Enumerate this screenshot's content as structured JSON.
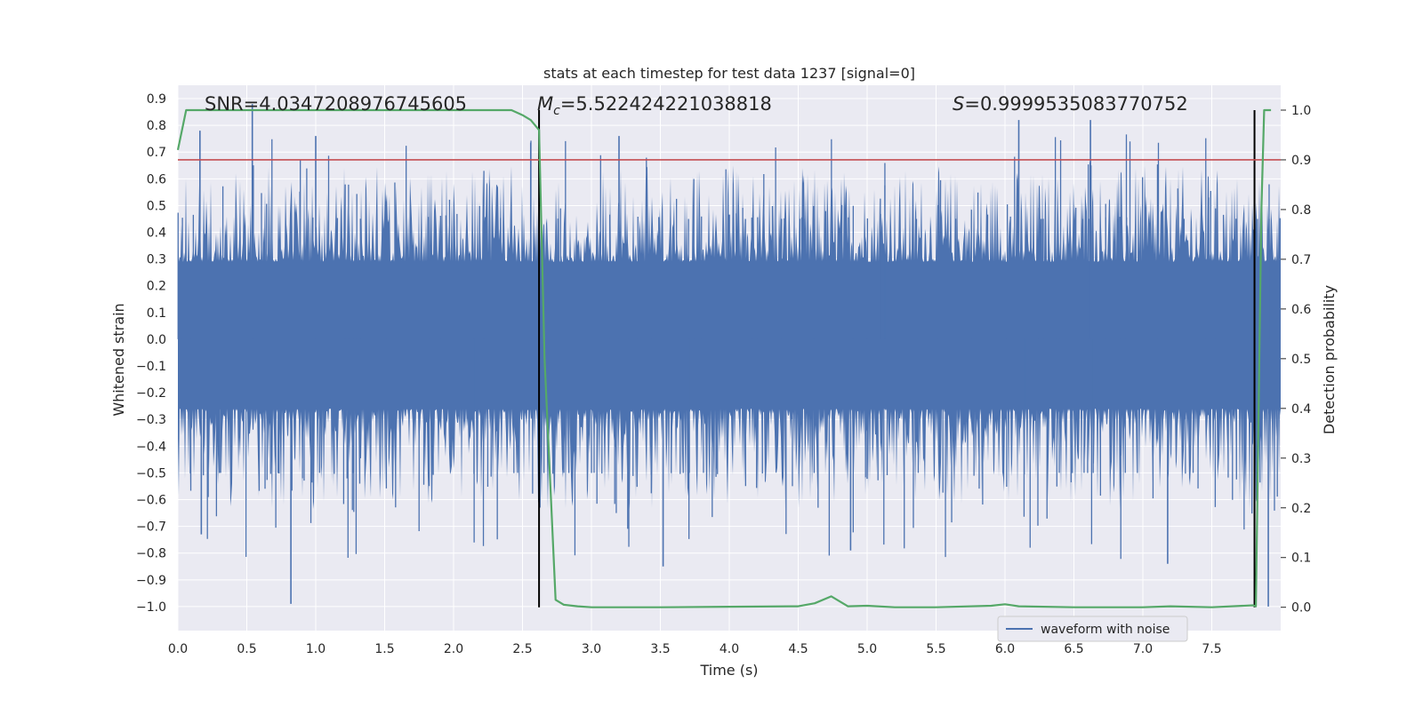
{
  "chart_data": {
    "type": "line",
    "title": "stats at each timestep for test data 1237 [signal=0]",
    "xlabel": "Time (s)",
    "ylabel_left": "Whitened strain",
    "ylabel_right": "Detection probability",
    "xlim": [
      0.0,
      8.0
    ],
    "ylim_left": [
      -1.09,
      0.95
    ],
    "ylim_right": [
      -0.047,
      1.05
    ],
    "x_ticks": [
      "0.0",
      "0.5",
      "1.0",
      "1.5",
      "2.0",
      "2.5",
      "3.0",
      "3.5",
      "4.0",
      "4.5",
      "5.0",
      "5.5",
      "6.0",
      "6.5",
      "7.0",
      "7.5"
    ],
    "y_ticks_left": [
      "0.9",
      "0.8",
      "0.7",
      "0.6",
      "0.5",
      "0.4",
      "0.3",
      "0.2",
      "0.1",
      "0.0",
      "-0.1",
      "-0.2",
      "-0.3",
      "-0.4",
      "-0.5",
      "-0.6",
      "-0.7",
      "-0.8",
      "-0.9",
      "-1.0"
    ],
    "y_ticks_right": [
      "1.0",
      "0.9",
      "0.8",
      "0.7",
      "0.6",
      "0.5",
      "0.4",
      "0.3",
      "0.2",
      "0.1",
      "0.0"
    ],
    "grid": true,
    "legend_placement": "lower-right",
    "legend": [
      "waveform with noise"
    ],
    "annotations": {
      "snr": "SNR=4.0347208976745605",
      "mc_symbol": "M",
      "mc_sub": "c",
      "mc_value": "=5.522424221038818",
      "s_symbol": "S",
      "s_value": "=0.9999535083770752"
    },
    "threshold": {
      "axis": "right",
      "value": 0.9,
      "color": "#c44e52"
    },
    "event_markers_x": [
      2.62,
      7.81
    ],
    "series": [
      {
        "name": "waveform with noise",
        "axis": "left",
        "color": "#4c72b0",
        "kind": "dense noise",
        "x_range": [
          0.0,
          8.0
        ],
        "core_amplitude": [
          -0.4,
          0.38
        ],
        "peaks": [
          {
            "x": 0.16,
            "y": 0.78
          },
          {
            "x": 0.54,
            "y": 0.88
          },
          {
            "x": 0.82,
            "y": -0.99
          },
          {
            "x": 0.17,
            "y": -0.73
          },
          {
            "x": 1.0,
            "y": 0.76
          },
          {
            "x": 3.2,
            "y": 0.76
          },
          {
            "x": 3.52,
            "y": -0.85
          },
          {
            "x": 4.88,
            "y": -0.79
          },
          {
            "x": 6.1,
            "y": 0.82
          },
          {
            "x": 6.62,
            "y": 0.82
          },
          {
            "x": 7.18,
            "y": -0.84
          },
          {
            "x": 7.91,
            "y": -1.0
          }
        ]
      },
      {
        "name": "detection probability",
        "axis": "right",
        "color": "#55a868",
        "x": [
          0.0,
          0.06,
          0.2,
          0.5,
          1.0,
          1.5,
          2.0,
          2.42,
          2.5,
          2.56,
          2.62,
          2.66,
          2.74,
          2.8,
          2.9,
          3.0,
          3.2,
          3.5,
          4.0,
          4.5,
          4.62,
          4.74,
          4.86,
          5.0,
          5.2,
          5.5,
          5.9,
          6.0,
          6.1,
          6.5,
          7.0,
          7.2,
          7.5,
          7.8,
          7.82,
          7.86,
          7.88,
          7.93
        ],
        "y": [
          0.92,
          1.0,
          1.0,
          1.0,
          1.0,
          1.0,
          1.0,
          1.0,
          0.99,
          0.98,
          0.96,
          0.5,
          0.015,
          0.005,
          0.002,
          0.0,
          0.0,
          0.0,
          0.001,
          0.002,
          0.008,
          0.022,
          0.002,
          0.003,
          0.0,
          0.0,
          0.003,
          0.006,
          0.002,
          0.0,
          0.0,
          0.002,
          0.0,
          0.004,
          0.002,
          0.8,
          1.0,
          1.0
        ]
      }
    ]
  }
}
